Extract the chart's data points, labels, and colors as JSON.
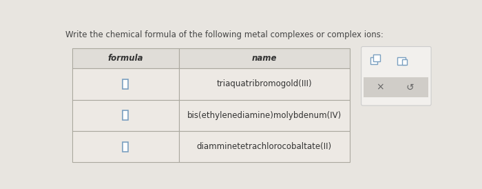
{
  "title": "Write the chemical formula of the following metal complexes or complex ions:",
  "col_headers": [
    "formula",
    "name"
  ],
  "rows": [
    [
      "",
      "triaquatribromogold(III)"
    ],
    [
      "",
      "bis(ethylenediamine)molybdenum(IV)"
    ],
    [
      "",
      "diamminetetrachlorocobaltate(II)"
    ]
  ],
  "bg_color": "#e8e5e0",
  "cell_bg": "#ede9e4",
  "header_bg": "#e0ddd8",
  "border_color": "#aaa89e",
  "text_color": "#333333",
  "title_color": "#444444",
  "title_fontsize": 8.5,
  "header_fontsize": 8.5,
  "cell_fontsize": 8.5,
  "checkbox_color": "#7a9fc0",
  "overlay_bg": "#f2f0ed",
  "overlay_border": "#cccccc",
  "overlay_gray": "#d0cdc8",
  "icon_color": "#7a9fc0"
}
